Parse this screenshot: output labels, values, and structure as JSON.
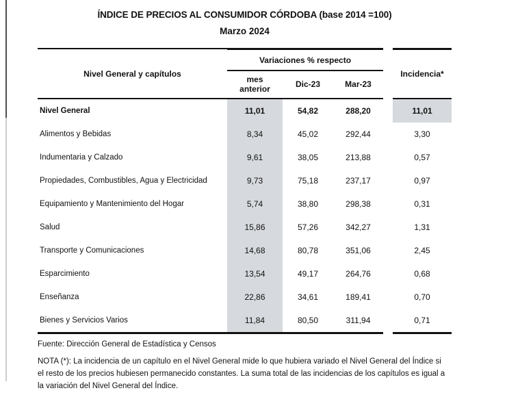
{
  "title": "ÍNDICE DE PRECIOS AL CONSUMIDOR CÓRDOBA (base 2014 =100)",
  "subtitle": "Marzo 2024",
  "table": {
    "row_header": "Nivel General y capítulos",
    "col_group_header": "Variaciones % respecto",
    "incidencia_header": "Incidencia*",
    "sub_headers": {
      "mes": "mes\nanterior",
      "dic": "Dic-23",
      "mar": "Mar-23"
    },
    "rows": [
      {
        "label": "Nivel General",
        "mes": "11,01",
        "dic": "54,82",
        "mar": "288,20",
        "inc": "11,01",
        "bold": true,
        "inc_shaded": true
      },
      {
        "label": "Alimentos y Bebidas",
        "mes": "8,34",
        "dic": "45,02",
        "mar": "292,44",
        "inc": "3,30",
        "bold": false,
        "inc_shaded": false
      },
      {
        "label": "Indumentaria y Calzado",
        "mes": "9,61",
        "dic": "38,05",
        "mar": "213,88",
        "inc": "0,57",
        "bold": false,
        "inc_shaded": false
      },
      {
        "label": "Propiedades, Combustibles, Agua y Electricidad",
        "mes": "9,73",
        "dic": "75,18",
        "mar": "237,17",
        "inc": "0,97",
        "bold": false,
        "inc_shaded": false
      },
      {
        "label": "Equipamiento y Mantenimiento del Hogar",
        "mes": "5,74",
        "dic": "38,80",
        "mar": "298,38",
        "inc": "0,31",
        "bold": false,
        "inc_shaded": false
      },
      {
        "label": "Salud",
        "mes": "15,86",
        "dic": "57,26",
        "mar": "342,27",
        "inc": "1,31",
        "bold": false,
        "inc_shaded": false
      },
      {
        "label": "Transporte y Comunicaciones",
        "mes": "14,68",
        "dic": "80,78",
        "mar": "351,06",
        "inc": "2,45",
        "bold": false,
        "inc_shaded": false
      },
      {
        "label": "Esparcimiento",
        "mes": "13,54",
        "dic": "49,17",
        "mar": "264,76",
        "inc": "0,68",
        "bold": false,
        "inc_shaded": false
      },
      {
        "label": "Enseñanza",
        "mes": "22,86",
        "dic": "34,61",
        "mar": "189,41",
        "inc": "0,70",
        "bold": false,
        "inc_shaded": false
      },
      {
        "label": "Bienes y Servicios Varios",
        "mes": "11,84",
        "dic": "80,50",
        "mar": "311,94",
        "inc": "0,71",
        "bold": false,
        "inc_shaded": false
      }
    ]
  },
  "footer": {
    "source": "Fuente: Dirección General de Estadística y Censos",
    "note": "NOTA (*): La incidencia de un capítulo en el Nivel General mide lo que hubiera variado el Nivel General del Índice si el resto de los precios hubiesen permanecido constantes. La suma total de las incidencias de los capítulos es igual a la variación del Nivel General del Índice."
  },
  "colors": {
    "shaded_column": "#d6d9dd",
    "border": "#111111",
    "text": "#111111"
  }
}
